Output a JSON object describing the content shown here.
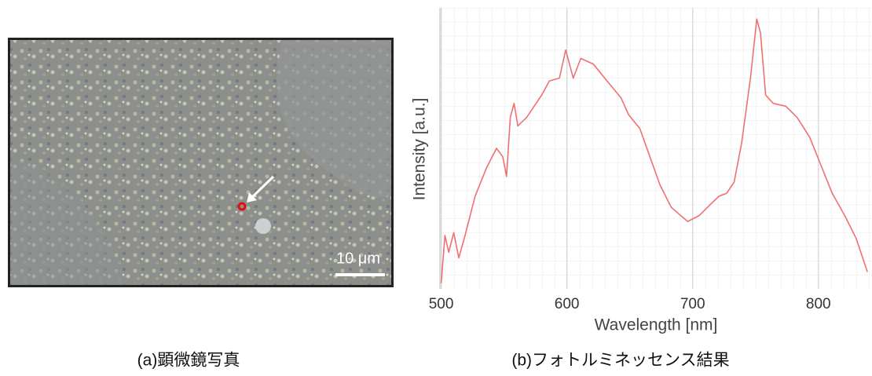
{
  "photo": {
    "scale_bar": "10 μm",
    "caption": "(a)顕微鏡写真"
  },
  "chart_data": {
    "type": "line",
    "caption": "(b)フォトルミネッセンス結果",
    "xlabel": "Wavelength [nm]",
    "ylabel": "Intensity [a.u.]",
    "x": [
      500,
      503,
      506,
      510,
      514,
      519,
      527,
      536,
      544,
      549,
      552,
      555,
      558,
      561,
      568,
      580,
      586,
      594,
      599,
      605,
      611,
      621,
      630,
      643,
      649,
      658,
      666,
      674,
      683,
      696,
      705,
      714,
      721,
      727,
      733,
      739,
      746,
      751,
      754,
      758,
      764,
      774,
      783,
      793,
      802,
      811,
      821,
      830,
      839
    ],
    "values": [
      2,
      19,
      13,
      20,
      11,
      19,
      33,
      43,
      50,
      47,
      40,
      61,
      66,
      58,
      61,
      69,
      74,
      75,
      85,
      75,
      82,
      80,
      75,
      68,
      62,
      57,
      47,
      37,
      29,
      24,
      26,
      30,
      33,
      34,
      38,
      52,
      75,
      96,
      91,
      69,
      66,
      65,
      61,
      54,
      44,
      34,
      26,
      18,
      6
    ],
    "color": "#f07070",
    "xlim": [
      499,
      842
    ],
    "ylim": [
      0,
      100
    ],
    "xticks": [
      500,
      600,
      700,
      800
    ],
    "grid": true
  }
}
